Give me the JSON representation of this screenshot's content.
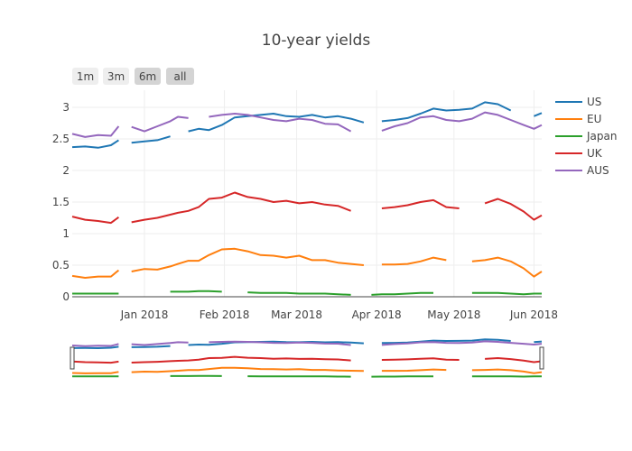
{
  "chart_data": {
    "type": "line",
    "title": "10-year yields",
    "xlabel": "",
    "ylabel": "",
    "ylim": [
      0,
      3.15
    ],
    "xlim": [
      "2017-12-04",
      "2018-06-04"
    ],
    "yticks": [
      0,
      0.5,
      1,
      1.5,
      2,
      2.5,
      3
    ],
    "ytick_labels": [
      "0",
      "0.5",
      "1",
      "1.5",
      "2",
      "2.5",
      "3"
    ],
    "xticks": [
      "2018-01-01",
      "2018-02-01",
      "2018-03-01",
      "2018-04-01",
      "2018-05-01",
      "2018-06-01"
    ],
    "xtick_labels": [
      "Jan 2018",
      "Feb 2018",
      "Mar 2018",
      "Apr 2018",
      "May 2018",
      "Jun 2018"
    ],
    "grid": true,
    "legend_position": "right",
    "x": [
      "2017-12-04",
      "2017-12-09",
      "2017-12-14",
      "2017-12-19",
      "2017-12-22",
      "2017-12-24",
      "2017-12-27",
      "2018-01-01",
      "2018-01-06",
      "2018-01-11",
      "2018-01-14",
      "2018-01-18",
      "2018-01-22",
      "2018-01-26",
      "2018-01-31",
      "2018-02-05",
      "2018-02-10",
      "2018-02-15",
      "2018-02-20",
      "2018-02-25",
      "2018-03-02",
      "2018-03-07",
      "2018-03-12",
      "2018-03-17",
      "2018-03-22",
      "2018-03-27",
      "2018-03-30",
      "2018-04-03",
      "2018-04-08",
      "2018-04-13",
      "2018-04-18",
      "2018-04-23",
      "2018-04-28",
      "2018-05-03",
      "2018-05-08",
      "2018-05-13",
      "2018-05-18",
      "2018-05-23",
      "2018-05-28",
      "2018-06-01",
      "2018-06-04"
    ],
    "series": [
      {
        "name": "US",
        "color": "#1f77b4",
        "values": [
          2.37,
          2.38,
          2.36,
          2.4,
          2.48,
          null,
          2.44,
          2.46,
          2.48,
          2.54,
          null,
          2.62,
          2.66,
          2.64,
          2.72,
          2.84,
          2.86,
          2.88,
          2.9,
          2.86,
          2.85,
          2.88,
          2.84,
          2.86,
          2.82,
          2.76,
          null,
          2.78,
          2.8,
          2.83,
          2.9,
          2.98,
          2.95,
          2.96,
          2.98,
          3.08,
          3.05,
          2.95,
          null,
          2.86,
          2.91
        ]
      },
      {
        "name": "EU",
        "color": "#ff7f0e",
        "values": [
          0.33,
          0.3,
          0.32,
          0.32,
          0.42,
          null,
          0.4,
          0.44,
          0.43,
          0.48,
          0.52,
          0.57,
          0.57,
          0.66,
          0.75,
          0.76,
          0.72,
          0.66,
          0.65,
          0.62,
          0.65,
          0.58,
          0.58,
          0.54,
          0.52,
          0.5,
          null,
          0.51,
          0.51,
          0.52,
          0.56,
          0.62,
          0.58,
          null,
          0.56,
          0.58,
          0.62,
          0.56,
          0.45,
          0.32,
          0.4
        ]
      },
      {
        "name": "Japan",
        "color": "#2ca02c",
        "values": [
          0.05,
          0.05,
          0.05,
          0.05,
          0.05,
          null,
          0.05,
          null,
          null,
          0.08,
          0.08,
          0.08,
          0.09,
          0.09,
          0.08,
          null,
          0.07,
          0.06,
          0.06,
          0.06,
          0.05,
          0.05,
          0.05,
          0.04,
          0.03,
          null,
          0.03,
          0.04,
          0.04,
          0.05,
          0.06,
          0.06,
          null,
          null,
          0.06,
          0.06,
          0.06,
          0.05,
          0.04,
          0.05,
          0.05
        ]
      },
      {
        "name": "UK",
        "color": "#d62728",
        "values": [
          1.27,
          1.22,
          1.2,
          1.17,
          1.26,
          null,
          1.18,
          1.22,
          1.25,
          1.3,
          1.33,
          1.36,
          1.42,
          1.55,
          1.57,
          1.65,
          1.58,
          1.55,
          1.5,
          1.52,
          1.48,
          1.5,
          1.46,
          1.44,
          1.36,
          null,
          null,
          1.4,
          1.42,
          1.45,
          1.5,
          1.53,
          1.42,
          1.4,
          null,
          1.48,
          1.55,
          1.47,
          1.35,
          1.22,
          1.29
        ]
      },
      {
        "name": "AUS",
        "color": "#9467bd",
        "values": [
          2.58,
          2.53,
          2.56,
          2.55,
          2.7,
          null,
          2.69,
          2.62,
          2.7,
          2.78,
          2.85,
          2.83,
          null,
          2.85,
          2.88,
          2.9,
          2.88,
          2.84,
          2.8,
          2.78,
          2.82,
          2.8,
          2.74,
          2.73,
          2.62,
          null,
          null,
          2.63,
          2.7,
          2.75,
          2.84,
          2.86,
          2.8,
          2.78,
          2.82,
          2.92,
          2.88,
          2.8,
          2.72,
          2.66,
          2.72
        ]
      }
    ]
  },
  "range_selector": {
    "buttons": [
      {
        "label": "1m",
        "active": false
      },
      {
        "label": "3m",
        "active": false
      },
      {
        "label": "6m",
        "active": true
      },
      {
        "label": "all",
        "active": true
      }
    ]
  }
}
